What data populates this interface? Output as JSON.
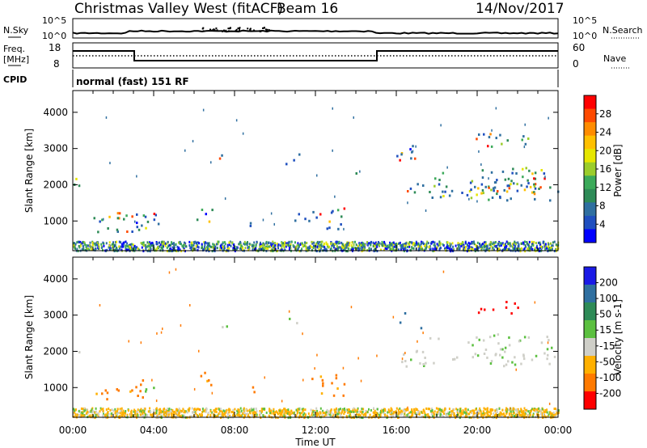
{
  "header": {
    "radar": "Christmas Valley West (fitACF)",
    "beam": "Beam 16",
    "date": "14/Nov/2017"
  },
  "panels": {
    "nsky": {
      "left_label": "N.Sky",
      "right_label": "N.Search",
      "left_ticks": [
        "10^5",
        "10^0"
      ],
      "right_ticks": [
        "10^5",
        "10^0"
      ]
    },
    "freq": {
      "left_label_1": "Freq.",
      "left_label_2": "[MHz]",
      "left_ticks": [
        "18",
        "8"
      ],
      "right_label": "Nave",
      "right_ticks": [
        "60",
        "0"
      ]
    },
    "cpid": {
      "label": "CPID",
      "mode": "normal (fast) 151 RF"
    }
  },
  "chart_data": [
    {
      "type": "heatmap",
      "name": "power",
      "ylabel": "Slant Range [km]",
      "yticks": [
        1000,
        2000,
        3000,
        4000
      ],
      "ylim": [
        180,
        4600
      ],
      "xlim": [
        "00:00",
        "24:00"
      ],
      "colorbar": {
        "label": "Power [dB]",
        "ticks": [
          "28",
          "24",
          "20",
          "16",
          "12",
          "8",
          "4"
        ],
        "colors": [
          "#ff0000",
          "#ff4a00",
          "#ff8c00",
          "#ffc000",
          "#e6e600",
          "#9bcd2b",
          "#3caa5a",
          "#2e8b57",
          "#2f6fa0",
          "#1f4fbf",
          "#0000ff"
        ]
      }
    },
    {
      "type": "heatmap",
      "name": "velocity",
      "ylabel": "Slant Range [km]",
      "yticks": [
        1000,
        2000,
        3000,
        4000
      ],
      "ylim": [
        180,
        4600
      ],
      "xlim": [
        "00:00",
        "24:00"
      ],
      "colorbar": {
        "label": "Velocity [m s-1]",
        "ticks": [
          "200",
          "100",
          "50",
          "15",
          "-15",
          "-50",
          "-100",
          "-200"
        ],
        "colors": [
          "#1a1ae6",
          "#2f6fa0",
          "#2e8b57",
          "#5cc040",
          "#cfcfc8",
          "#ffb000",
          "#ff7a00",
          "#ff0000"
        ]
      }
    }
  ],
  "xaxis": {
    "ticks": [
      "00:00",
      "04:00",
      "08:00",
      "12:00",
      "16:00",
      "20:00",
      "00:00"
    ],
    "label": "Time UT"
  }
}
